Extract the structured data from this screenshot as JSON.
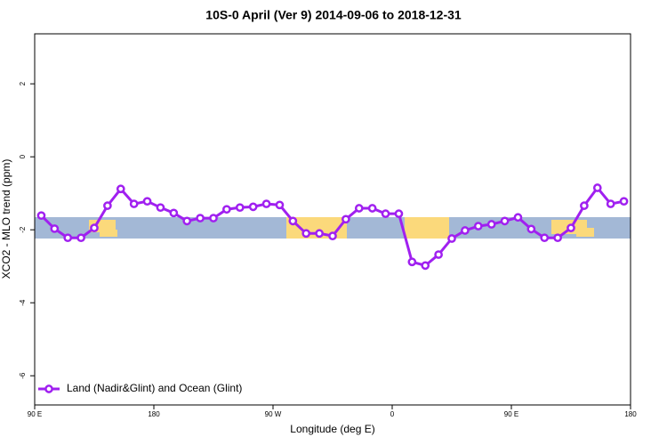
{
  "chart_data": {
    "type": "line",
    "title": "10S-0 April (Ver 9)   2014-09-06 to 2018-12-31",
    "xlabel": "Longitude (deg E)",
    "ylabel": "XCO2 - MLO trend (ppm)",
    "x": [
      95,
      105,
      115,
      125,
      135,
      145,
      155,
      165,
      175,
      185,
      195,
      205,
      215,
      225,
      235,
      245,
      255,
      265,
      275,
      285,
      295,
      305,
      315,
      325,
      335,
      345,
      355,
      365,
      375,
      385,
      395,
      405,
      415,
      425,
      435,
      445,
      455,
      465,
      475,
      485,
      495,
      505,
      515,
      525,
      535
    ],
    "series": [
      {
        "name": "Land (Nadir&Glint) and Ocean (Glint)",
        "color": "#a020f0",
        "values": [
          -1.61,
          -1.97,
          -2.22,
          -2.22,
          -1.95,
          -1.34,
          -0.88,
          -1.29,
          -1.22,
          -1.39,
          -1.54,
          -1.76,
          -1.68,
          -1.68,
          -1.44,
          -1.39,
          -1.37,
          -1.29,
          -1.32,
          -1.76,
          -2.1,
          -2.1,
          -2.17,
          -1.71,
          -1.41,
          -1.41,
          -1.56,
          -1.56,
          -2.88,
          -2.98,
          -2.68,
          -2.24,
          -2.02,
          -1.9,
          -1.85,
          -1.76,
          -1.66,
          -1.98,
          -2.22,
          -2.22,
          -1.95,
          -1.34,
          -0.85,
          -1.29,
          -1.22
        ]
      }
    ],
    "xlim": [
      90,
      540
    ],
    "xticks": [
      {
        "value": 90,
        "label": "90 E"
      },
      180,
      {
        "value": 270,
        "label": "90 W"
      },
      {
        "value": 360,
        "label": "0"
      },
      {
        "value": 450,
        "label": "90 E"
      },
      {
        "value": 540,
        "label": "180"
      }
    ],
    "ylim": [
      -6.8,
      3.37
    ],
    "yticks": [
      2,
      0,
      -2,
      -4,
      -6
    ],
    "legend": "bottom-left"
  }
}
